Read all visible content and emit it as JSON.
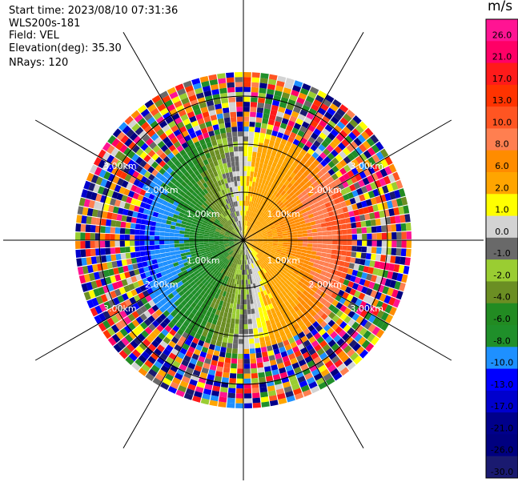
{
  "header": {
    "start_time": "Start time: 2023/08/10 07:31:36",
    "instrument": "WLS200s-181",
    "field": "Field: VEL",
    "elevation": "Elevation(deg): 35.30",
    "nrays": "NRays: 120"
  },
  "colorbar": {
    "unit": "m/s",
    "ticks": [
      "26.0",
      "21.0",
      "17.0",
      "13.0",
      "10.0",
      "8.0",
      "6.0",
      "2.0",
      "1.0",
      "0.0",
      "-1.0",
      "-2.0",
      "-4.0",
      "-6.0",
      "-8.0",
      "-10.0",
      "-13.0",
      "-17.0",
      "-21.0",
      "-26.0",
      "-30.0"
    ],
    "colors": [
      "#ff1493",
      "#ff0066",
      "#ff1a1a",
      "#ff3300",
      "#ff5522",
      "#ff7f50",
      "#ff8c00",
      "#ffa500",
      "#ffff00",
      "#d3d3d3",
      "#696969",
      "#9acd32",
      "#6b8e23",
      "#228b22",
      "#1f8f2a",
      "#1e90ff",
      "#0000ff",
      "#0000cd",
      "#00008b",
      "#000080",
      "#1a1a70"
    ]
  },
  "chart_data": {
    "type": "ppi",
    "field": "VEL",
    "units": "m/s",
    "nrays": 120,
    "range_labels_km": [
      "1.00km",
      "2.00km",
      "3.00km"
    ],
    "value_range": [
      -30,
      26
    ],
    "pattern": {
      "inner_flow_towards_deg": 90,
      "positive_sector": "east",
      "negative_sector": "west",
      "valid_range_km": 2.3,
      "max_range_km": 3.5
    }
  }
}
